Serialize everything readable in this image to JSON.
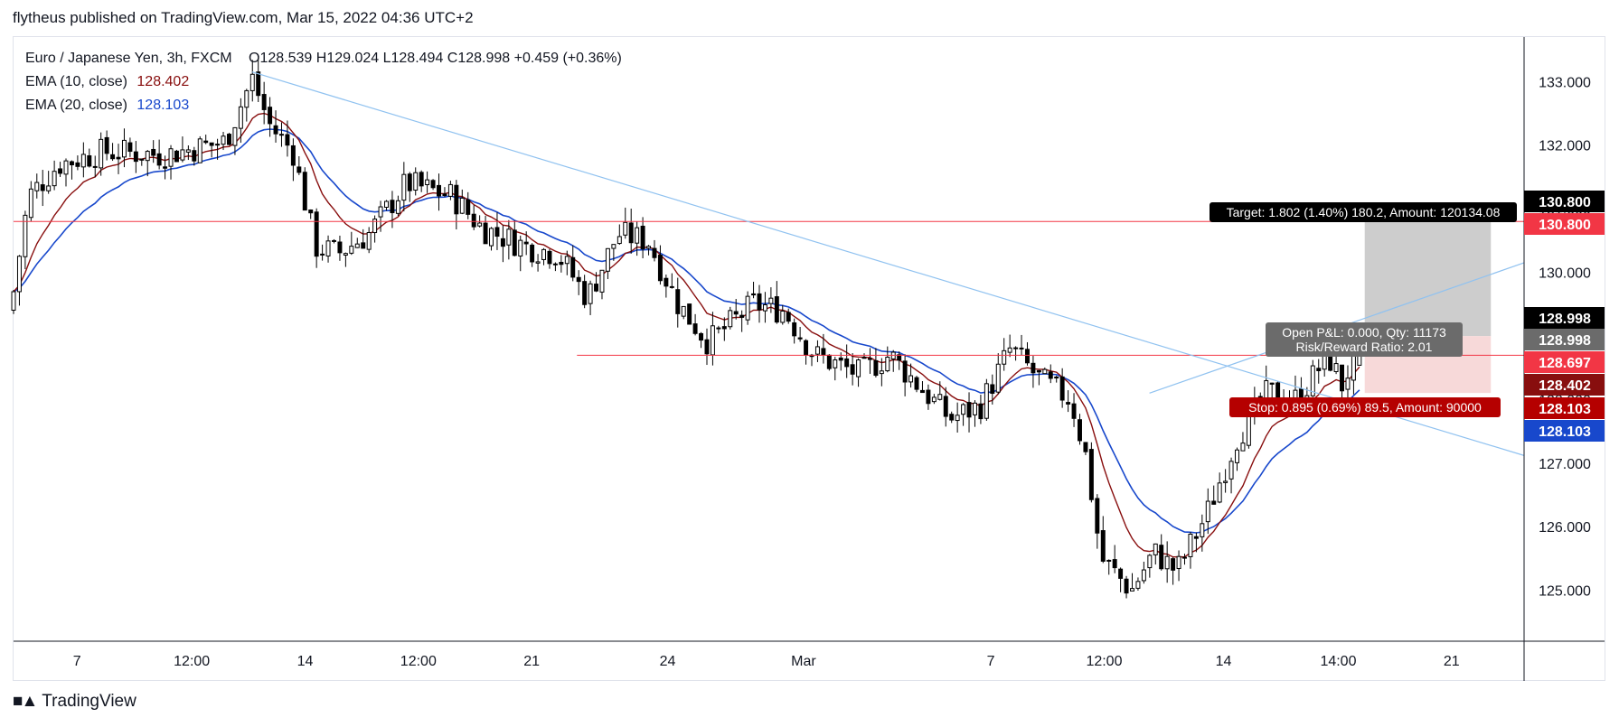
{
  "header": {
    "published": "flytheus published on TradingView.com, Mar 15, 2022 04:36 UTC+2"
  },
  "legend": {
    "symbol": "Euro / Japanese Yen, 3h, FXCM",
    "ohlc": "O128.539 H129.024 L128.494 C128.998 +0.459 (+0.36%)",
    "ema10_label": "EMA (10, close)",
    "ema10_value": "128.402",
    "ema20_label": "EMA (20, close)",
    "ema20_value": "128.103"
  },
  "footer": {
    "brand": "TradingView",
    "logo_icon": "tradingview-logo-icon"
  },
  "position": {
    "target_text": "Target: 1.802 (1.40%) 180.2, Amount: 120134.08",
    "open_text": "Open P&L: 0.000, Qty: 11173",
    "rr_text": "Risk/Reward Ratio: 2.01",
    "stop_text": "Stop: 0.895 (0.69%) 89.5, Amount: 90000"
  },
  "colors": {
    "up": "#ffffff",
    "down": "#000000",
    "ema10": "#880e0e",
    "ema20": "#1848cc",
    "trendline": "#90c2f0",
    "hline": "#f23645",
    "target_fill": "#c8c8c8",
    "stop_fill": "#f6d5d5"
  },
  "chart_data": {
    "type": "candlestick",
    "y_ticks": [
      "133.000",
      "132.000",
      "131.000",
      "130.000",
      "129.000",
      "128.000",
      "127.000",
      "126.000",
      "125.000"
    ],
    "ylim": [
      124.2,
      133.7
    ],
    "x_ticks": [
      "7",
      "12:00",
      "14",
      "12:00",
      "21",
      "24",
      "Mar",
      "7",
      "12:00",
      "14",
      "14:00",
      "21"
    ],
    "price_labels": [
      {
        "text": "130.800",
        "value": 130.8,
        "bg": "#000000"
      },
      {
        "text": "130.800",
        "value": 130.8,
        "bg": "#f23645"
      },
      {
        "text": "128.998",
        "value": 128.998,
        "bg": "#000000"
      },
      {
        "text": "128.998",
        "value": 128.998,
        "bg": "#6b6b6b"
      },
      {
        "text": "128.697",
        "value": 128.697,
        "bg": "#f23645"
      },
      {
        "text": "128.402",
        "value": 128.402,
        "bg": "#880e0e"
      },
      {
        "text": "128.103",
        "value": 128.103,
        "bg": "#b50000"
      },
      {
        "text": "128.103",
        "value": 128.103,
        "bg": "#1848cc"
      }
    ],
    "horizontal_lines": [
      128.697
    ],
    "target_line": 130.8,
    "entry": 128.998,
    "target": 130.8,
    "stop": 128.103,
    "trendlines": [
      {
        "from": [
          0.158,
          133.15
        ],
        "to": [
          1.0,
          127.12
        ]
      },
      {
        "from": [
          0.752,
          128.1
        ],
        "to": [
          1.0,
          130.15
        ]
      }
    ],
    "anchors": [
      [
        0.0,
        129.7
      ],
      [
        0.01,
        131.2
      ],
      [
        0.03,
        131.7
      ],
      [
        0.06,
        131.9
      ],
      [
        0.1,
        131.85
      ],
      [
        0.14,
        132.05
      ],
      [
        0.158,
        133.05
      ],
      [
        0.17,
        132.3
      ],
      [
        0.185,
        131.9
      ],
      [
        0.2,
        130.4
      ],
      [
        0.215,
        130.3
      ],
      [
        0.235,
        130.6
      ],
      [
        0.26,
        131.4
      ],
      [
        0.29,
        131.2
      ],
      [
        0.31,
        130.7
      ],
      [
        0.34,
        130.4
      ],
      [
        0.36,
        130.3
      ],
      [
        0.38,
        129.6
      ],
      [
        0.4,
        130.6
      ],
      [
        0.42,
        130.5
      ],
      [
        0.44,
        129.5
      ],
      [
        0.46,
        128.9
      ],
      [
        0.49,
        129.5
      ],
      [
        0.51,
        129.4
      ],
      [
        0.53,
        128.7
      ],
      [
        0.56,
        128.4
      ],
      [
        0.58,
        128.7
      ],
      [
        0.6,
        128.2
      ],
      [
        0.62,
        127.7
      ],
      [
        0.64,
        127.9
      ],
      [
        0.66,
        128.8
      ],
      [
        0.68,
        128.3
      ],
      [
        0.7,
        128.0
      ],
      [
        0.71,
        127.1
      ],
      [
        0.72,
        125.5
      ],
      [
        0.74,
        125.0
      ],
      [
        0.755,
        125.6
      ],
      [
        0.77,
        125.3
      ],
      [
        0.79,
        126.2
      ],
      [
        0.81,
        127.4
      ],
      [
        0.83,
        128.1
      ],
      [
        0.85,
        128.0
      ],
      [
        0.87,
        128.7
      ],
      [
        0.88,
        128.2
      ],
      [
        0.891,
        128.998
      ]
    ],
    "ema10_end": 128.402,
    "ema20_end": 128.103
  }
}
